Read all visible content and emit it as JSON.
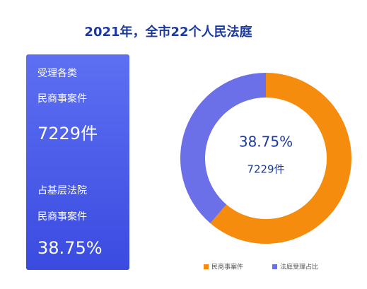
{
  "header": {
    "title": "2021年，全市22个人民法庭"
  },
  "card": {
    "lines": [
      "受理各类",
      "民商事案件",
      "7229件",
      "占基层法院",
      "民商事案件",
      "38.75%"
    ]
  },
  "chart_data": {
    "type": "pie",
    "categories": [
      "民商事案件",
      "法庭受理占比"
    ],
    "values": [
      61.25,
      38.75
    ],
    "colors": [
      "#f68c0d",
      "#6b70e8"
    ],
    "center_label": "38.75%",
    "center_sublabel": "7229件"
  }
}
